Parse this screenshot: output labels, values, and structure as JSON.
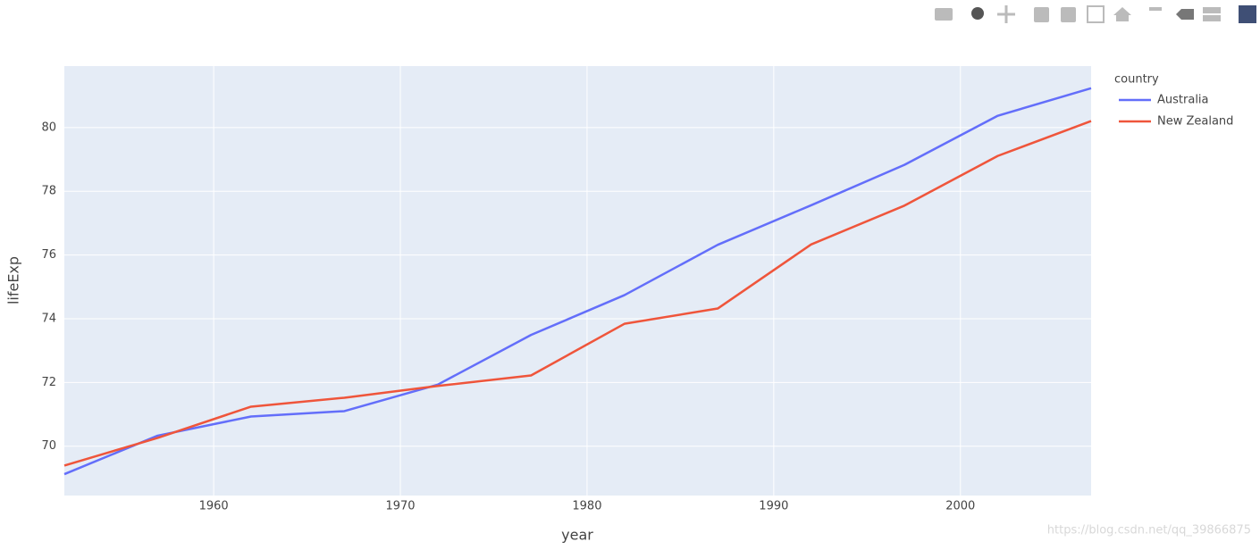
{
  "chart_data": {
    "type": "line",
    "x": [
      1952,
      1957,
      1962,
      1967,
      1972,
      1977,
      1982,
      1987,
      1992,
      1997,
      2002,
      2007
    ],
    "series": [
      {
        "name": "Australia",
        "color": "#636efa",
        "values": [
          69.12,
          70.33,
          70.93,
          71.1,
          71.93,
          73.49,
          74.74,
          76.32,
          77.56,
          78.83,
          80.37,
          81.235
        ]
      },
      {
        "name": "New Zealand",
        "color": "#ef553b",
        "values": [
          69.39,
          70.26,
          71.24,
          71.52,
          71.89,
          72.22,
          73.84,
          74.32,
          76.33,
          77.55,
          79.11,
          80.204
        ]
      }
    ],
    "xlim": [
      1952,
      2007
    ],
    "xticks": [
      1960,
      1970,
      1980,
      1990,
      2000
    ],
    "ylim": [
      68.45,
      81.93
    ],
    "yticks": [
      70,
      72,
      74,
      76,
      78,
      80
    ],
    "grid": true,
    "x_label": "year",
    "y_label": "lifeExp",
    "legend_title": "country",
    "watermark": "https://blog.csdn.net/qq_39866875"
  }
}
